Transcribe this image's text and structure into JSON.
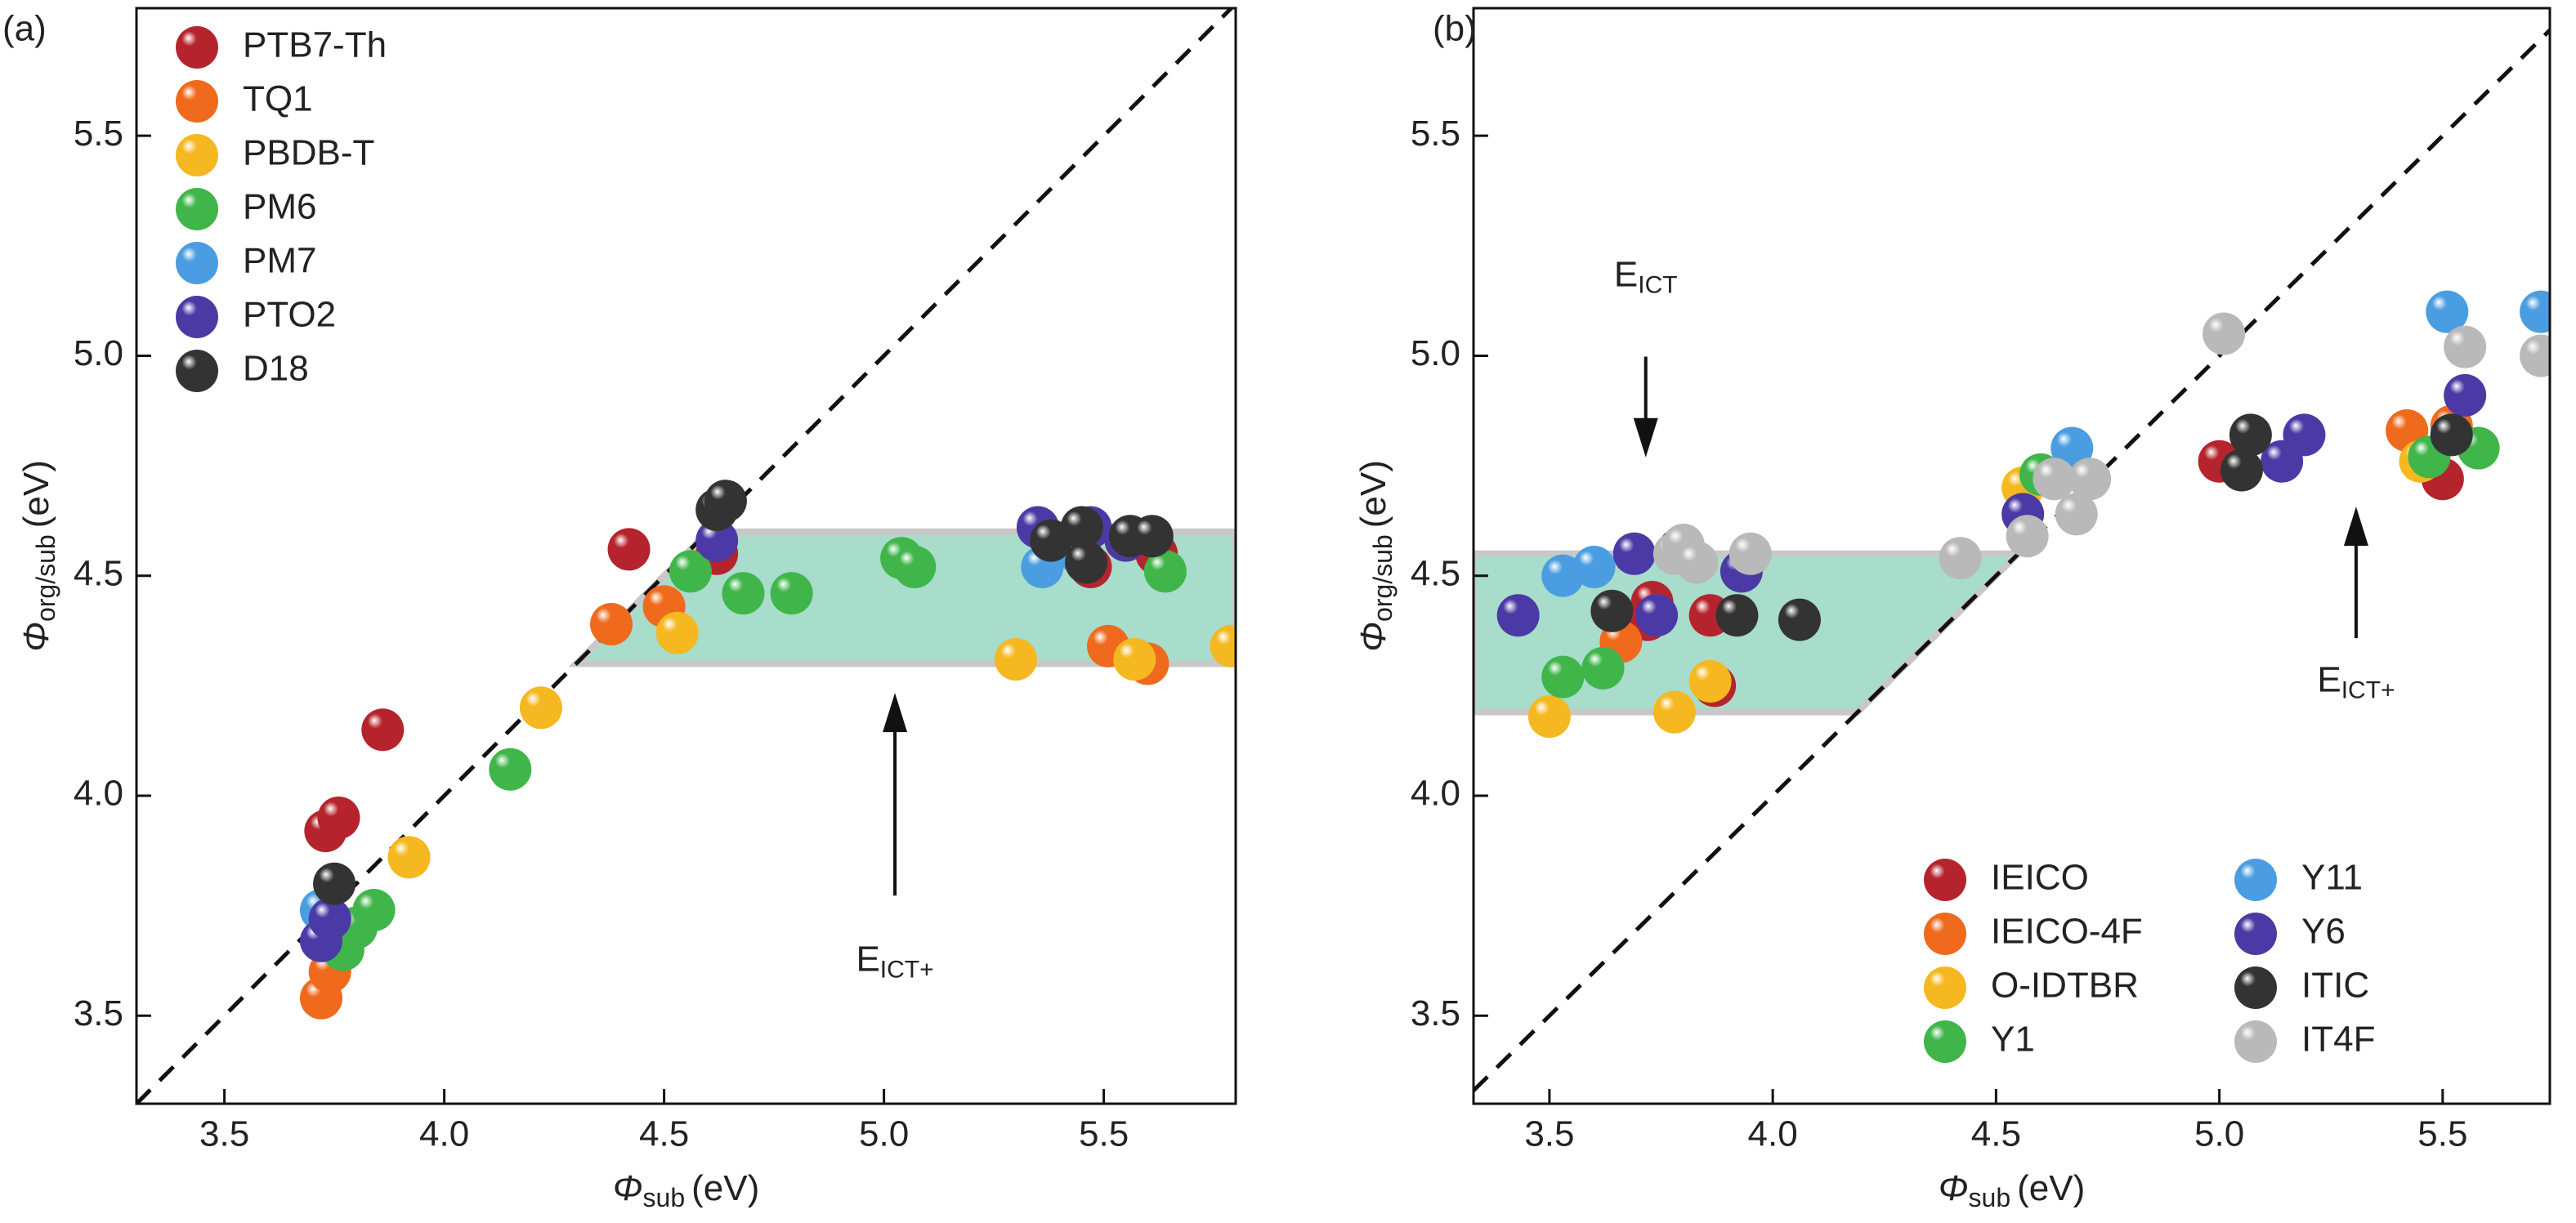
{
  "chart_data": [
    {
      "type": "scatter",
      "panel_label": "(a)",
      "x_label": {
        "symbol": "Φ",
        "sub": "sub",
        "unit": "(eV)"
      },
      "y_label": {
        "symbol": "Φ",
        "sub": "org/sub",
        "unit": "(eV)"
      },
      "xlim": [
        3.3,
        5.8
      ],
      "ylim": [
        3.3,
        5.79
      ],
      "xticks": [
        3.5,
        {
          "value": 4,
          "label": "4.0"
        },
        4.5,
        {
          "value": 5,
          "label": "5.0"
        },
        5.5
      ],
      "yticks": [
        3.5,
        {
          "value": 4,
          "label": "4.0"
        },
        4.5,
        {
          "value": 5,
          "label": "5.0"
        },
        5.5
      ],
      "diagonal": true,
      "band": [
        4.3,
        4.6
      ],
      "band_side": "right",
      "band_color": "#a8dccb",
      "legend": "upper left",
      "legend_columns": 1,
      "annotations": [
        {
          "text": "E",
          "sub": "ICT+"
        }
      ],
      "series": [
        {
          "name": "PTB7-Th",
          "color": "#b5242c",
          "x": [
            3.73,
            3.76,
            3.86,
            4.42,
            4.62,
            5.47,
            5.62
          ],
          "y": [
            3.92,
            3.95,
            4.15,
            4.56,
            4.55,
            4.52,
            4.55
          ]
        },
        {
          "name": "TQ1",
          "color": "#ef6a1c",
          "x": [
            3.72,
            3.74,
            4.38,
            4.5,
            5.51,
            5.6
          ],
          "y": [
            3.54,
            3.6,
            4.39,
            4.43,
            4.34,
            4.3
          ]
        },
        {
          "name": "PBDB-T",
          "color": "#f5b820",
          "x": [
            3.92,
            4.22,
            4.53,
            5.3,
            5.57,
            5.79
          ],
          "y": [
            3.86,
            4.2,
            4.37,
            4.31,
            4.31,
            4.34
          ]
        },
        {
          "name": "PM6",
          "color": "#3fb54a",
          "x": [
            3.77,
            3.8,
            3.84,
            4.15,
            4.56,
            4.68,
            4.79,
            5.04,
            5.07,
            5.64
          ],
          "y": [
            3.65,
            3.7,
            3.74,
            4.06,
            4.51,
            4.46,
            4.46,
            4.54,
            4.52,
            4.51
          ]
        },
        {
          "name": "PM7",
          "color": "#4a9de0",
          "x": [
            3.72,
            5.36,
            5.43
          ],
          "y": [
            3.74,
            4.52,
            4.56
          ]
        },
        {
          "name": "PTO2",
          "color": "#4b3aa5",
          "x": [
            3.72,
            3.74,
            4.62,
            5.35,
            5.47,
            5.55
          ],
          "y": [
            3.67,
            3.72,
            4.58,
            4.61,
            4.61,
            4.58
          ]
        },
        {
          "name": "D18",
          "color": "#333333",
          "x": [
            3.75,
            4.62,
            4.64,
            5.38,
            5.45,
            5.46,
            5.56,
            5.61
          ],
          "y": [
            3.8,
            4.65,
            4.67,
            4.58,
            4.61,
            4.53,
            4.59,
            4.59
          ]
        }
      ]
    },
    {
      "type": "scatter",
      "panel_label": "(b)",
      "x_label": {
        "symbol": "Φ",
        "sub": "sub",
        "unit": "(eV)"
      },
      "y_label": {
        "symbol": "Φ",
        "sub": "org/sub",
        "unit": "(eV)"
      },
      "xlim": [
        3.33,
        5.74
      ],
      "ylim": [
        3.3,
        5.79
      ],
      "xticks": [
        3.5,
        {
          "value": 4,
          "label": "4.0"
        },
        4.5,
        {
          "value": 5,
          "label": "5.0"
        },
        5.5
      ],
      "yticks": [
        3.5,
        {
          "value": 4,
          "label": "4.0"
        },
        4.5,
        {
          "value": 5,
          "label": "5.0"
        },
        5.5
      ],
      "diagonal": true,
      "band": [
        4.19,
        4.55
      ],
      "band_side": "left",
      "band_color": "#a8dccb",
      "legend": "lower right",
      "legend_columns": 2,
      "annotations": [
        {
          "text": "E",
          "sub": "ICT"
        },
        {
          "text": "E",
          "sub": "ICT+"
        }
      ],
      "series": [
        {
          "name": "IEICO",
          "color": "#b5242c",
          "x": [
            3.72,
            3.73,
            3.86,
            3.87,
            5.0,
            5.5
          ],
          "y": [
            4.4,
            4.44,
            4.41,
            4.25,
            4.76,
            4.72
          ]
        },
        {
          "name": "IEICO-4F",
          "color": "#ef6a1c",
          "x": [
            3.66,
            5.42,
            5.52
          ],
          "y": [
            4.35,
            4.83,
            4.84
          ]
        },
        {
          "name": "O-IDTBR",
          "color": "#f5b820",
          "x": [
            3.5,
            3.78,
            3.86,
            4.56,
            5.45
          ],
          "y": [
            4.18,
            4.19,
            4.26,
            4.7,
            4.76
          ]
        },
        {
          "name": "Y1",
          "color": "#3fb54a",
          "x": [
            3.53,
            3.62,
            4.6,
            5.47,
            5.58
          ],
          "y": [
            4.27,
            4.29,
            4.73,
            4.77,
            4.79
          ]
        },
        {
          "name": "Y11",
          "color": "#4a9de0",
          "x": [
            3.53,
            3.6,
            4.67,
            5.51,
            5.72
          ],
          "y": [
            4.5,
            4.52,
            4.79,
            5.1,
            5.1
          ]
        },
        {
          "name": "Y6",
          "color": "#4b3aa5",
          "x": [
            3.43,
            3.69,
            3.74,
            3.79,
            3.93,
            4.56,
            5.14,
            5.19,
            5.55
          ],
          "y": [
            4.41,
            4.55,
            4.41,
            4.56,
            4.51,
            4.64,
            4.76,
            4.82,
            4.91
          ]
        },
        {
          "name": "ITIC",
          "color": "#333333",
          "x": [
            3.64,
            3.92,
            4.06,
            5.05,
            5.07,
            5.52
          ],
          "y": [
            4.42,
            4.41,
            4.4,
            4.74,
            4.82,
            4.82
          ]
        },
        {
          "name": "IT4F",
          "color": "#b9b9b9",
          "x": [
            3.78,
            3.8,
            3.83,
            3.95,
            4.42,
            4.57,
            4.63,
            4.68,
            4.71,
            5.01,
            5.55,
            5.72
          ],
          "y": [
            4.55,
            4.57,
            4.53,
            4.55,
            4.54,
            4.59,
            4.72,
            4.64,
            4.72,
            5.05,
            5.02,
            5.0
          ]
        }
      ]
    }
  ]
}
